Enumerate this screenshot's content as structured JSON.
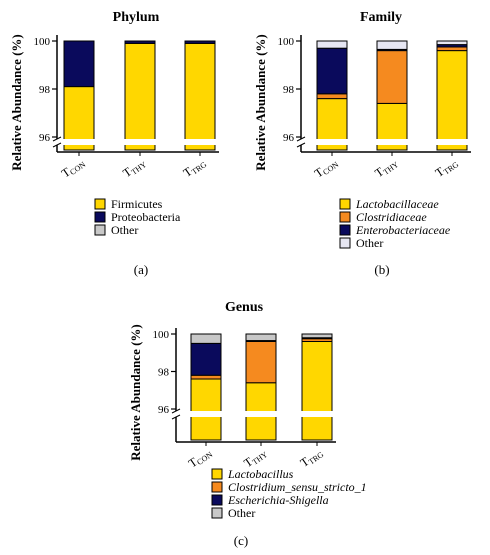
{
  "figure": {
    "panels": [
      {
        "title": "Phylum",
        "panel_label": "(a)",
        "ylabel": "Relative Abundance (%)",
        "categories": [
          {
            "main": "T",
            "sub": "CON"
          },
          {
            "main": "T",
            "sub": "THY"
          },
          {
            "main": "T",
            "sub": "TRG"
          }
        ],
        "ticks": [
          "96",
          "98",
          "100"
        ],
        "legend": [
          {
            "label": "Firmicutes",
            "italic": false
          },
          {
            "label": "Proteobacteria",
            "italic": false
          },
          {
            "label": "Other",
            "italic": false
          }
        ]
      },
      {
        "title": "Family",
        "panel_label": "(b)",
        "ylabel": "Relative Abundance (%)",
        "categories": [
          {
            "main": "T",
            "sub": "CON"
          },
          {
            "main": "T",
            "sub": "THY"
          },
          {
            "main": "T",
            "sub": "TRG"
          }
        ],
        "ticks": [
          "96",
          "98",
          "100"
        ],
        "legend": [
          {
            "label": "Lactobacillaceae",
            "italic": true
          },
          {
            "label": "Clostridiaceae",
            "italic": true
          },
          {
            "label": "Enterobacteriaceae",
            "italic": true
          },
          {
            "label": "Other",
            "italic": false
          }
        ]
      },
      {
        "title": "Genus",
        "panel_label": "(c)",
        "ylabel": "Relative Abundance (%)",
        "categories": [
          {
            "main": "T",
            "sub": "CON"
          },
          {
            "main": "T",
            "sub": "THY"
          },
          {
            "main": "T",
            "sub": "TRG"
          }
        ],
        "ticks": [
          "96",
          "98",
          "100"
        ],
        "legend": [
          {
            "label": "Lactobacillus",
            "italic": true
          },
          {
            "label": "Clostridium_sensu_stricto_1",
            "italic": true
          },
          {
            "label": "Escherichia-Shigella",
            "italic": true
          },
          {
            "label": "Other",
            "italic": false
          }
        ]
      }
    ]
  },
  "chart_data": [
    {
      "type": "bar",
      "stacked": true,
      "title": "Phylum",
      "ylabel": "Relative Abundance (%)",
      "categories": [
        "TCON",
        "TTHY",
        "TTRG"
      ],
      "ylim": [
        96,
        100
      ],
      "axis_break": true,
      "series": [
        {
          "name": "Firmicutes",
          "color": "#FFD700",
          "values": [
            98.1,
            99.9,
            99.9
          ]
        },
        {
          "name": "Proteobacteria",
          "color": "#0A0A5C",
          "values": [
            1.9,
            0.1,
            0.1
          ]
        },
        {
          "name": "Other",
          "color": "#C8C8C8",
          "values": [
            0.0,
            0.0,
            0.0
          ]
        }
      ]
    },
    {
      "type": "bar",
      "stacked": true,
      "title": "Family",
      "ylabel": "Relative Abundance (%)",
      "categories": [
        "TCON",
        "TTHY",
        "TTRG"
      ],
      "ylim": [
        96,
        100
      ],
      "axis_break": true,
      "series": [
        {
          "name": "Lactobacillaceae",
          "color": "#FFD700",
          "values": [
            97.6,
            97.4,
            99.6
          ]
        },
        {
          "name": "Clostridiaceae",
          "color": "#F58A1F",
          "values": [
            0.2,
            2.2,
            0.15
          ]
        },
        {
          "name": "Enterobacteriaceae",
          "color": "#0A0A5C",
          "values": [
            1.9,
            0.05,
            0.1
          ]
        },
        {
          "name": "Other",
          "color": "#E6E6F2",
          "values": [
            0.3,
            0.35,
            0.15
          ]
        }
      ]
    },
    {
      "type": "bar",
      "stacked": true,
      "title": "Genus",
      "ylabel": "Relative Abundance (%)",
      "categories": [
        "TCON",
        "TTHY",
        "TTRG"
      ],
      "ylim": [
        96,
        100
      ],
      "axis_break": true,
      "series": [
        {
          "name": "Lactobacillus",
          "color": "#FFD700",
          "values": [
            97.6,
            97.4,
            99.6
          ]
        },
        {
          "name": "Clostridium_sensu_stricto_1",
          "color": "#F58A1F",
          "values": [
            0.2,
            2.2,
            0.15
          ]
        },
        {
          "name": "Escherichia-Shigella",
          "color": "#0A0A5C",
          "values": [
            1.7,
            0.05,
            0.05
          ]
        },
        {
          "name": "Other",
          "color": "#C8C8C8",
          "values": [
            0.5,
            0.35,
            0.2
          ]
        }
      ]
    }
  ]
}
